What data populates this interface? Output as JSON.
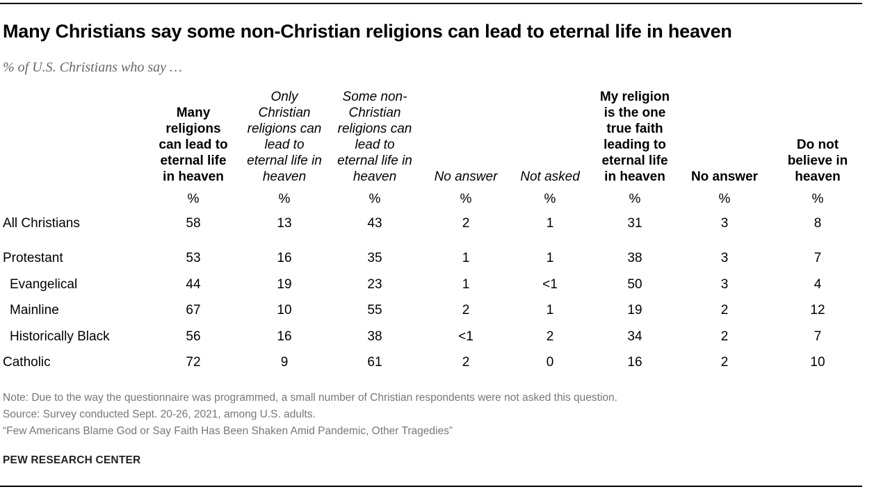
{
  "title": "Many Christians say some non-Christian religions can lead to eternal life in heaven",
  "subtitle": "% of U.S. Christians who say …",
  "chart_data": {
    "type": "table",
    "columns": [
      {
        "label": "Many religions can lead to eternal life in heaven",
        "style": "bold",
        "unit": "%"
      },
      {
        "label": "Only Christian religions can lead to eternal life in heaven",
        "style": "italic",
        "unit": "%"
      },
      {
        "label": "Some non-Christian religions can lead to eternal life in heaven",
        "style": "italic",
        "unit": "%"
      },
      {
        "label": "No answer",
        "style": "italic",
        "unit": "%"
      },
      {
        "label": "Not asked",
        "style": "italic",
        "unit": "%"
      },
      {
        "label": "My religion is the one true faith leading to eternal life in heaven",
        "style": "bold",
        "unit": "%"
      },
      {
        "label": "No answer",
        "style": "bold",
        "unit": "%"
      },
      {
        "label": "Do not believe in heaven",
        "style": "bold",
        "unit": "%"
      }
    ],
    "header_lines": [
      [
        "Many",
        "religions",
        "can lead to",
        "eternal life",
        "in heaven"
      ],
      [
        "Only",
        "Christian",
        "religions can",
        "lead to",
        "eternal life in",
        "heaven"
      ],
      [
        "Some non-",
        "Christian",
        "religions can",
        "lead to",
        "eternal life in",
        "heaven"
      ],
      [
        "No answer"
      ],
      [
        "Not asked"
      ],
      [
        "My religion",
        "is the one",
        "true faith",
        "leading to",
        "eternal life",
        "in heaven"
      ],
      [
        "No answer"
      ],
      [
        "Do not",
        "believe in",
        "heaven"
      ]
    ],
    "rows": [
      {
        "label": "All Christians",
        "indent": false,
        "values": [
          "58",
          "13",
          "43",
          "2",
          "1",
          "31",
          "3",
          "8"
        ]
      },
      {
        "label": "Protestant",
        "indent": false,
        "values": [
          "53",
          "16",
          "35",
          "1",
          "1",
          "38",
          "3",
          "7"
        ]
      },
      {
        "label": "Evangelical",
        "indent": true,
        "values": [
          "44",
          "19",
          "23",
          "1",
          "<1",
          "50",
          "3",
          "4"
        ]
      },
      {
        "label": "Mainline",
        "indent": true,
        "values": [
          "67",
          "10",
          "55",
          "2",
          "1",
          "19",
          "2",
          "12"
        ]
      },
      {
        "label": "Historically Black",
        "indent": true,
        "values": [
          "56",
          "16",
          "38",
          "<1",
          "2",
          "34",
          "2",
          "7"
        ]
      },
      {
        "label": "Catholic",
        "indent": false,
        "values": [
          "72",
          "9",
          "61",
          "2",
          "0",
          "16",
          "2",
          "10"
        ]
      }
    ]
  },
  "footer": {
    "note": "Note: Due to the way the questionnaire was programmed, a small number of Christian respondents were not asked this question.",
    "source": "Source: Survey conducted Sept. 20-26, 2021, among U.S. adults.",
    "report": "“Few Americans Blame God or Say Faith Has Been Shaken Amid Pandemic, Other Tragedies”",
    "brand": "PEW RESEARCH CENTER"
  }
}
